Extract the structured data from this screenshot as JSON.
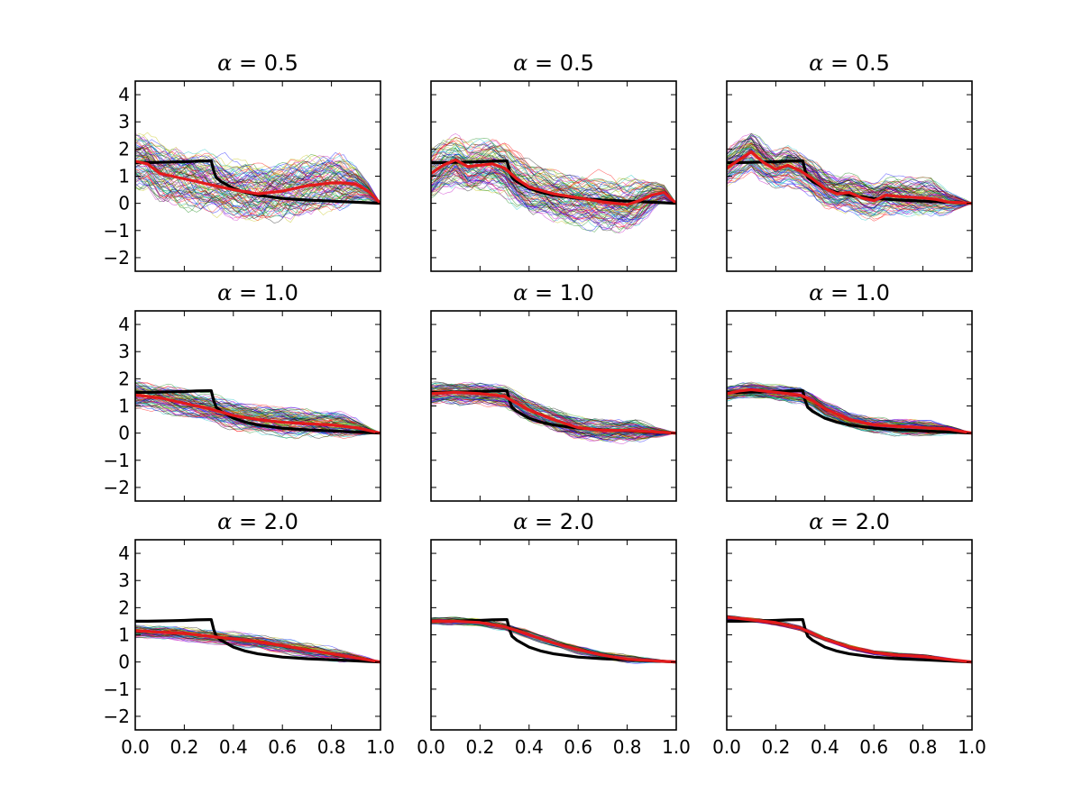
{
  "chart_data": {
    "type": "line",
    "layout": {
      "rows": 3,
      "cols": 3
    },
    "xlim": [
      0.0,
      1.0
    ],
    "ylim": [
      -2.5,
      4.5
    ],
    "x_ticks": [
      "0.0",
      "0.2",
      "0.4",
      "0.6",
      "0.8",
      "1.0"
    ],
    "y_ticks": [
      "−2",
      "−1",
      "0",
      "1",
      "2",
      "3",
      "4"
    ],
    "series_colors": {
      "true": "#000000",
      "mean": "#e31a1c",
      "samples": [
        "#0000ff",
        "#008000",
        "#ff0000",
        "#00bfbf",
        "#bf00bf",
        "#bfbf00",
        "#000000"
      ]
    },
    "true_curve": {
      "x": [
        0.0,
        0.05,
        0.1,
        0.15,
        0.2,
        0.25,
        0.3,
        0.31,
        0.32,
        0.33,
        0.35,
        0.4,
        0.45,
        0.5,
        0.6,
        0.7,
        0.8,
        0.9,
        1.0
      ],
      "y": [
        1.5,
        1.5,
        1.51,
        1.52,
        1.53,
        1.55,
        1.56,
        1.56,
        1.2,
        0.95,
        0.8,
        0.55,
        0.4,
        0.3,
        0.18,
        0.12,
        0.08,
        0.04,
        0.0
      ]
    },
    "panels": [
      {
        "title_alpha": "α",
        "title_value": " = 0.5",
        "row": 0,
        "spread": 0.95,
        "samples": 90,
        "mean": {
          "x": [
            0.0,
            0.05,
            0.1,
            0.15,
            0.2,
            0.3,
            0.4,
            0.5,
            0.6,
            0.7,
            0.8,
            0.85,
            0.9,
            0.95,
            1.0
          ],
          "y": [
            1.55,
            1.45,
            1.1,
            1.0,
            0.9,
            0.7,
            0.5,
            0.35,
            0.45,
            0.65,
            0.75,
            0.75,
            0.7,
            0.45,
            0.0
          ]
        }
      },
      {
        "title_alpha": "α",
        "title_value": " = 0.5",
        "row": 0,
        "spread": 0.8,
        "samples": 90,
        "mean": {
          "x": [
            0.0,
            0.05,
            0.1,
            0.15,
            0.2,
            0.25,
            0.3,
            0.35,
            0.4,
            0.5,
            0.6,
            0.7,
            0.8,
            0.85,
            0.9,
            0.95,
            1.0
          ],
          "y": [
            1.1,
            1.4,
            1.6,
            1.35,
            1.4,
            1.45,
            1.3,
            0.9,
            0.6,
            0.35,
            0.2,
            0.05,
            -0.05,
            0.1,
            0.3,
            0.4,
            0.0
          ]
        }
      },
      {
        "title_alpha": "α",
        "title_value": " = 0.5",
        "row": 0,
        "spread": 0.6,
        "samples": 90,
        "mean": {
          "x": [
            0.0,
            0.05,
            0.1,
            0.15,
            0.2,
            0.25,
            0.3,
            0.35,
            0.4,
            0.45,
            0.5,
            0.55,
            0.6,
            0.65,
            0.7,
            0.8,
            0.85,
            0.9,
            1.0
          ],
          "y": [
            1.3,
            1.6,
            1.9,
            1.5,
            1.25,
            1.4,
            1.2,
            0.9,
            0.55,
            0.35,
            0.4,
            0.2,
            0.1,
            0.3,
            0.25,
            0.2,
            0.15,
            0.05,
            0.0
          ]
        }
      },
      {
        "title_alpha": "α",
        "title_value": " = 1.0",
        "row": 1,
        "spread": 0.45,
        "samples": 90,
        "mean": {
          "x": [
            0.0,
            0.1,
            0.2,
            0.3,
            0.4,
            0.5,
            0.6,
            0.7,
            0.8,
            0.9,
            1.0
          ],
          "y": [
            1.4,
            1.3,
            1.1,
            0.9,
            0.65,
            0.5,
            0.4,
            0.35,
            0.3,
            0.2,
            0.0
          ]
        }
      },
      {
        "title_alpha": "α",
        "title_value": " = 1.0",
        "row": 1,
        "spread": 0.35,
        "samples": 90,
        "mean": {
          "x": [
            0.0,
            0.1,
            0.2,
            0.3,
            0.35,
            0.4,
            0.5,
            0.6,
            0.7,
            0.8,
            0.9,
            1.0
          ],
          "y": [
            1.45,
            1.5,
            1.45,
            1.35,
            1.1,
            0.85,
            0.5,
            0.2,
            0.1,
            0.1,
            0.05,
            0.0
          ]
        }
      },
      {
        "title_alpha": "α",
        "title_value": " = 1.0",
        "row": 1,
        "spread": 0.25,
        "samples": 90,
        "mean": {
          "x": [
            0.0,
            0.05,
            0.1,
            0.15,
            0.2,
            0.25,
            0.3,
            0.35,
            0.4,
            0.5,
            0.6,
            0.7,
            0.8,
            0.9,
            1.0
          ],
          "y": [
            1.45,
            1.55,
            1.6,
            1.55,
            1.5,
            1.45,
            1.4,
            1.2,
            0.9,
            0.5,
            0.3,
            0.25,
            0.2,
            0.15,
            0.0
          ]
        }
      },
      {
        "title_alpha": "α",
        "title_value": " = 2.0",
        "row": 2,
        "spread": 0.22,
        "samples": 70,
        "mean": {
          "x": [
            0.0,
            0.1,
            0.2,
            0.3,
            0.4,
            0.5,
            0.6,
            0.7,
            0.8,
            0.9,
            1.0
          ],
          "y": [
            1.15,
            1.1,
            1.05,
            0.95,
            0.85,
            0.75,
            0.6,
            0.45,
            0.3,
            0.15,
            0.0
          ]
        }
      },
      {
        "title_alpha": "α",
        "title_value": " = 2.0",
        "row": 2,
        "spread": 0.12,
        "samples": 70,
        "mean": {
          "x": [
            0.0,
            0.1,
            0.2,
            0.3,
            0.4,
            0.5,
            0.6,
            0.7,
            0.8,
            0.9,
            1.0
          ],
          "y": [
            1.5,
            1.5,
            1.45,
            1.3,
            1.0,
            0.7,
            0.45,
            0.25,
            0.1,
            0.05,
            0.0
          ]
        }
      },
      {
        "title_alpha": "α",
        "title_value": " = 2.0",
        "row": 2,
        "spread": 0.07,
        "samples": 70,
        "mean": {
          "x": [
            0.0,
            0.1,
            0.2,
            0.3,
            0.4,
            0.5,
            0.6,
            0.7,
            0.8,
            0.9,
            1.0
          ],
          "y": [
            1.65,
            1.55,
            1.45,
            1.25,
            0.85,
            0.55,
            0.35,
            0.25,
            0.2,
            0.1,
            0.0
          ]
        }
      }
    ]
  }
}
